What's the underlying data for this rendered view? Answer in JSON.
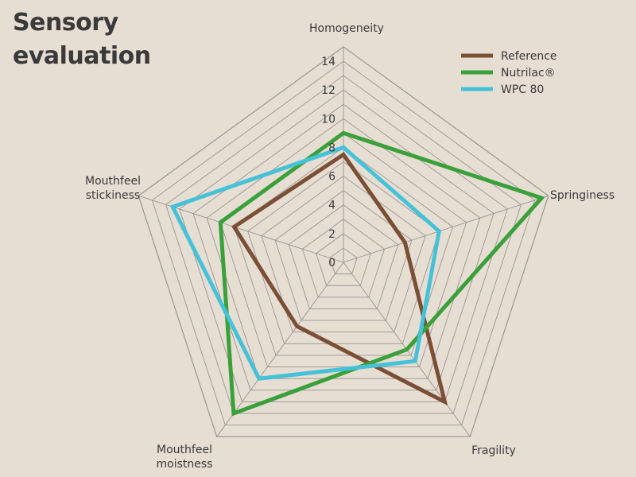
{
  "title_line1": "Sensory",
  "title_line2": "evaluation",
  "chart_data": {
    "type": "radar",
    "axes": [
      [
        "Homogeneity"
      ],
      [
        "Springiness"
      ],
      [
        "Fragility"
      ],
      [
        "Mouthfeel",
        "moistness"
      ],
      [
        "Mouthfeel",
        "stickiness"
      ]
    ],
    "range": [
      0,
      14
    ],
    "ticks": [
      0,
      2,
      4,
      6,
      8,
      10,
      12,
      14
    ],
    "grid": true,
    "legend_position": "top-right",
    "series": [
      {
        "name": "Reference",
        "color": "#7a4f35",
        "values": [
          7.5,
          4.5,
          12,
          5.5,
          8
        ]
      },
      {
        "name": "Nutrilac®",
        "color": "#3aa03a",
        "values": [
          9,
          14.5,
          7.5,
          13,
          9
        ]
      },
      {
        "name": "WPC 80",
        "color": "#45c2d8",
        "values": [
          8,
          7,
          8.5,
          10,
          12.5
        ]
      }
    ]
  }
}
